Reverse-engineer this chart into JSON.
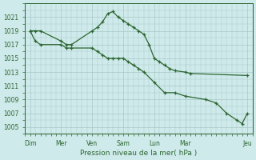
{
  "title": "Pression niveau de la mer( hPa )",
  "bg_color": "#ceeaea",
  "grid_color": "#a8c8c8",
  "line_color": "#2d6632",
  "ylim": [
    1004,
    1023
  ],
  "yticks": [
    1005,
    1007,
    1009,
    1011,
    1013,
    1015,
    1017,
    1019,
    1021
  ],
  "xlabels": [
    "Dim",
    "Mer",
    "Ven",
    "Sam",
    "Lun",
    "Mar",
    "Jeu"
  ],
  "xtick_positions": [
    0,
    12,
    24,
    36,
    48,
    60,
    84
  ],
  "line1_x": [
    0,
    2,
    4,
    12,
    14,
    16,
    24,
    26,
    28,
    30,
    32,
    34,
    36,
    38,
    40,
    42,
    44,
    46,
    48,
    50,
    52,
    54,
    56,
    60,
    62,
    84
  ],
  "line1_y": [
    1019,
    1019,
    1019,
    1017.5,
    1017,
    1017,
    1019,
    1019.5,
    1020.3,
    1021.5,
    1021.8,
    1021,
    1020.5,
    1020,
    1019.5,
    1019,
    1018.5,
    1017,
    1015,
    1014.5,
    1014,
    1013.5,
    1013.2,
    1013,
    1012.8,
    1012.5
  ],
  "line2_x": [
    0,
    2,
    4,
    12,
    14,
    16,
    24,
    26,
    28,
    30,
    32,
    34,
    36,
    38,
    40,
    42,
    44,
    48,
    52,
    56,
    60,
    68,
    72,
    76,
    80,
    82,
    84
  ],
  "line2_y": [
    1019,
    1017.5,
    1017,
    1017,
    1016.5,
    1016.5,
    1016.5,
    1016,
    1015.5,
    1015,
    1015,
    1015,
    1015,
    1014.5,
    1014,
    1013.5,
    1013,
    1011.5,
    1010,
    1010,
    1009.5,
    1009,
    1008.5,
    1007,
    1006,
    1005.5,
    1007
  ]
}
